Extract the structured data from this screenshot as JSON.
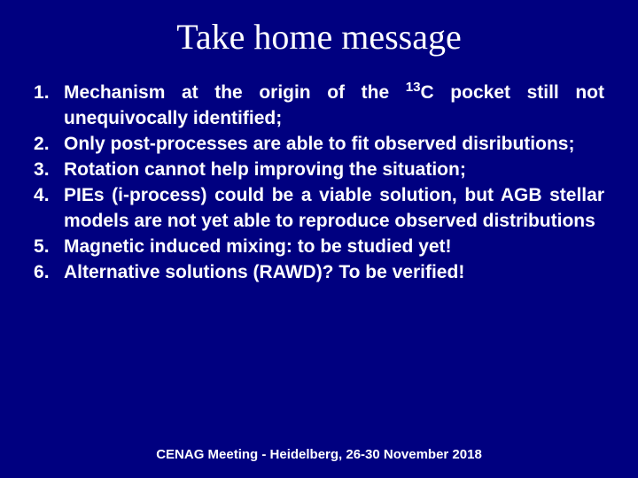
{
  "background_color": "#000080",
  "text_color": "#ffffff",
  "title": {
    "text": "Take home message",
    "font_family": "Times New Roman",
    "font_size_pt": 40
  },
  "body": {
    "font_family": "Comic Sans MS",
    "font_size_pt": 21,
    "font_weight": "bold",
    "text_align": "justify"
  },
  "items": [
    {
      "pre": "Mechanism at the origin of the ",
      "sup": "13",
      "post": "C pocket still not unequivocally identified;"
    },
    {
      "pre": "Only post-processes are able to fit observed disributions;",
      "sup": "",
      "post": ""
    },
    {
      "pre": "Rotation cannot help improving the situation;",
      "sup": "",
      "post": ""
    },
    {
      "pre": "PIEs (i-process) could be a viable solution, but AGB stellar models are not yet able to reproduce observed distributions",
      "sup": "",
      "post": ""
    },
    {
      "pre": "Magnetic induced mixing: to be studied yet!",
      "sup": "",
      "post": ""
    },
    {
      "pre": "Alternative solutions (RAWD)? To be verified!",
      "sup": "",
      "post": ""
    }
  ],
  "footer": {
    "text": "CENAG Meeting - Heidelberg, 26-30 November 2018",
    "font_size_pt": 15
  }
}
